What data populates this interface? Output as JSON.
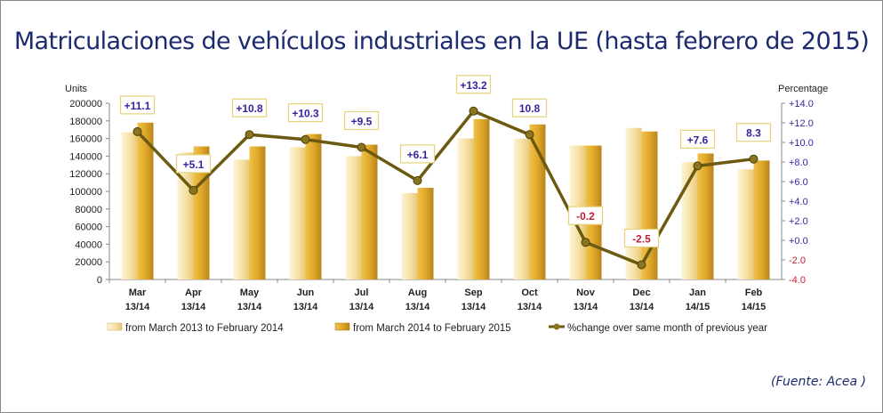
{
  "title": "Matriculaciones de vehículos industriales en la UE (hasta febrero de 2015)",
  "source": "(Fuente: Acea )",
  "chart_data": {
    "type": "bar",
    "title": "Matriculaciones de vehículos industriales en la UE (hasta febrero de 2015)",
    "ylabel": "Units",
    "y2label": "Percentage",
    "ylim": [
      0,
      200000
    ],
    "y2lim": [
      -4,
      14
    ],
    "yticks": [
      "0",
      "20000",
      "40000",
      "60000",
      "80000",
      "100000",
      "120000",
      "140000",
      "160000",
      "180000",
      "200000"
    ],
    "y2ticks": [
      "-4.0",
      "-2.0",
      "+0.0",
      "+2.0",
      "+4.0",
      "+6.0",
      "+8.0",
      "+10.0",
      "+12.0",
      "+14.0"
    ],
    "categories": [
      [
        "Mar",
        "13/14"
      ],
      [
        "Apr",
        "13/14"
      ],
      [
        "May",
        "13/14"
      ],
      [
        "Jun",
        "13/14"
      ],
      [
        "Jul",
        "13/14"
      ],
      [
        "Aug",
        "13/14"
      ],
      [
        "Sep",
        "13/14"
      ],
      [
        "Oct",
        "13/14"
      ],
      [
        "Nov",
        "13/14"
      ],
      [
        "Dec",
        "13/14"
      ],
      [
        "Jan",
        "14/15"
      ],
      [
        "Feb",
        "14/15"
      ]
    ],
    "series": [
      {
        "name": "from March 2013 to February 2014",
        "type": "bar",
        "color": "#f7e3a8",
        "values": [
          167000,
          144000,
          136000,
          150000,
          140000,
          98000,
          160000,
          160000,
          152000,
          172000,
          133000,
          125000
        ]
      },
      {
        "name": "from March 2014 to February 2015",
        "type": "bar",
        "color": "#e0a82a",
        "values": [
          178000,
          151000,
          151000,
          165000,
          153000,
          104000,
          182000,
          176000,
          152000,
          168000,
          143000,
          135000
        ]
      },
      {
        "name": "%change over same month of previous year",
        "type": "line",
        "axis": "right",
        "color": "#6b5a10",
        "values": [
          11.1,
          5.1,
          10.8,
          10.3,
          9.5,
          6.1,
          13.2,
          10.8,
          -0.2,
          -2.5,
          7.6,
          8.3
        ],
        "labels": [
          "+11.1",
          "+5.1",
          "+10.8",
          "+10.3",
          "+9.5",
          "+6.1",
          "+13.2",
          "10.8",
          "-0.2",
          "-2.5",
          "+7.6",
          "8.3"
        ]
      }
    ],
    "legend": "bottom",
    "grid": false
  }
}
